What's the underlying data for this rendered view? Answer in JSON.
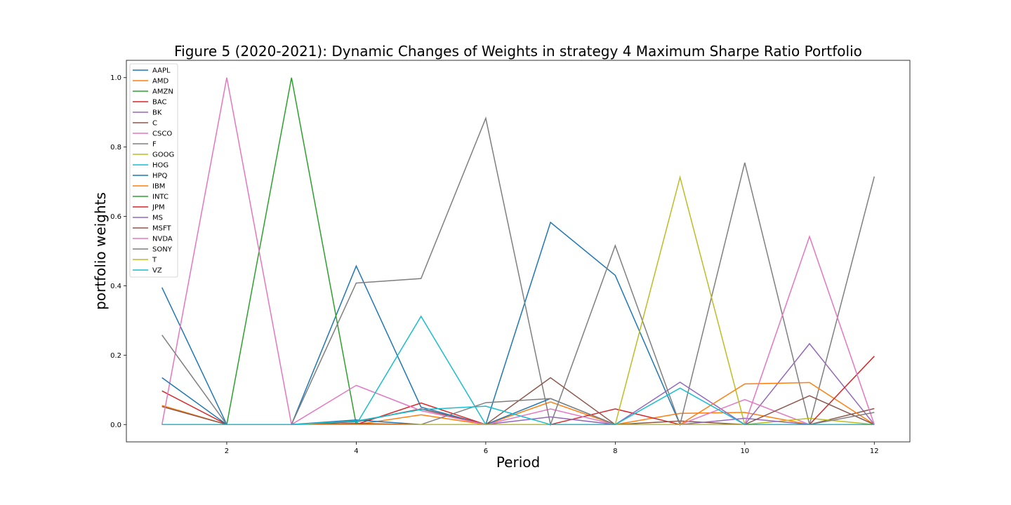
{
  "chart_data": {
    "type": "line",
    "title": "Figure 5 (2020-2021): Dynamic Changes of Weights in strategy 4 Maximum Sharpe Ratio Portfolio",
    "xlabel": "Period",
    "ylabel": "portfolio weights",
    "xlim": [
      0.45,
      12.55
    ],
    "ylim": [
      -0.05,
      1.05
    ],
    "xticks": [
      2,
      4,
      6,
      8,
      10,
      12
    ],
    "yticks": [
      0.0,
      0.2,
      0.4,
      0.6,
      0.8,
      1.0
    ],
    "grid": false,
    "legend_position": "upper-left",
    "x": [
      1,
      2,
      3,
      4,
      5,
      6,
      7,
      8,
      9,
      10,
      11,
      12
    ],
    "series": [
      {
        "name": "AAPL",
        "color": "#1f77b4",
        "values": [
          0.395,
          0,
          0,
          0.457,
          0.05,
          0,
          0.583,
          0.43,
          0,
          0,
          0,
          0
        ]
      },
      {
        "name": "AMD",
        "color": "#ff7f0e",
        "values": [
          0.055,
          0,
          0,
          0,
          0.028,
          0,
          0.065,
          0,
          0.032,
          0.035,
          0,
          0
        ]
      },
      {
        "name": "AMZN",
        "color": "#2ca02c",
        "values": [
          0,
          0,
          1.0,
          0,
          0,
          0,
          0,
          0,
          0,
          0,
          0,
          0
        ]
      },
      {
        "name": "BAC",
        "color": "#d62728",
        "values": [
          0.097,
          0,
          0,
          0,
          0.062,
          0,
          0,
          0.045,
          0,
          0,
          0,
          0
        ]
      },
      {
        "name": "BK",
        "color": "#9467bd",
        "values": [
          0,
          0,
          0,
          0.008,
          0.045,
          0,
          0.022,
          0,
          0.122,
          0,
          0.233,
          0
        ]
      },
      {
        "name": "C",
        "color": "#8c564b",
        "values": [
          0.052,
          0,
          0,
          0.008,
          0.045,
          0,
          0,
          0,
          0.01,
          0,
          0,
          0.046
        ]
      },
      {
        "name": "CSCO",
        "color": "#e377c2",
        "values": [
          0,
          1.0,
          0,
          0.113,
          0.04,
          0,
          0.045,
          0,
          0,
          0.072,
          0,
          0
        ]
      },
      {
        "name": "F",
        "color": "#7f7f7f",
        "values": [
          0.258,
          0,
          0,
          0.408,
          0.421,
          0.883,
          0,
          0.516,
          0,
          0.755,
          0,
          0.715
        ]
      },
      {
        "name": "GOOG",
        "color": "#bcbd22",
        "values": [
          0,
          0,
          0,
          0,
          0,
          0,
          0,
          0,
          0.713,
          0,
          0.018,
          0
        ]
      },
      {
        "name": "HOG",
        "color": "#17becf",
        "values": [
          0,
          0,
          0,
          0,
          0.312,
          0,
          0,
          0,
          0,
          0,
          0,
          0
        ]
      },
      {
        "name": "HPQ",
        "color": "#1f77b4",
        "values": [
          0.135,
          0,
          0,
          0.013,
          0,
          0,
          0.075,
          0,
          0,
          0,
          0,
          0
        ]
      },
      {
        "name": "IBM",
        "color": "#ff7f0e",
        "values": [
          0,
          0,
          0,
          0,
          0,
          0,
          0,
          0,
          0,
          0.117,
          0.121,
          0
        ]
      },
      {
        "name": "INTC",
        "color": "#2ca02c",
        "values": [
          0,
          0,
          0,
          0,
          0,
          0,
          0,
          0,
          0,
          0,
          0,
          0
        ]
      },
      {
        "name": "JPM",
        "color": "#d62728",
        "values": [
          0,
          0,
          0,
          0.003,
          0,
          0,
          0,
          0,
          0,
          0,
          0,
          0.197
        ]
      },
      {
        "name": "MS",
        "color": "#9467bd",
        "values": [
          0,
          0,
          0,
          0,
          0,
          0,
          0,
          0,
          0,
          0.018,
          0,
          0
        ]
      },
      {
        "name": "MSFT",
        "color": "#8c564b",
        "values": [
          0,
          0,
          0,
          0,
          0,
          0,
          0.135,
          0,
          0,
          0,
          0.083,
          0
        ]
      },
      {
        "name": "NVDA",
        "color": "#e377c2",
        "values": [
          0,
          0,
          0,
          0,
          0,
          0,
          0,
          0,
          0,
          0,
          0.542,
          0
        ]
      },
      {
        "name": "SONY",
        "color": "#7f7f7f",
        "values": [
          0,
          0,
          0,
          0,
          0,
          0.063,
          0.075,
          0,
          0,
          0,
          0,
          0.035
        ]
      },
      {
        "name": "T",
        "color": "#bcbd22",
        "values": [
          0,
          0,
          0,
          0,
          0,
          0,
          0,
          0,
          0,
          0,
          0,
          0
        ]
      },
      {
        "name": "VZ",
        "color": "#17becf",
        "values": [
          0,
          0,
          0,
          0.01,
          0.043,
          0.053,
          0,
          0,
          0.105,
          0,
          0,
          0
        ]
      }
    ]
  }
}
